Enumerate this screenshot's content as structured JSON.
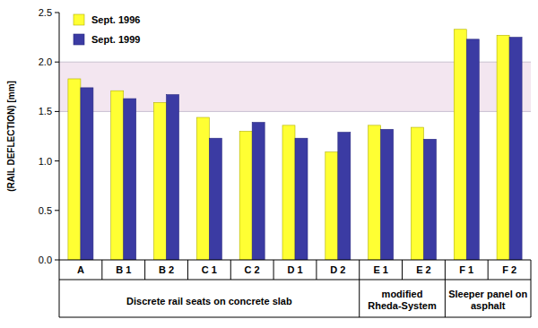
{
  "chart_data": {
    "type": "bar",
    "y_label": "(RAIL DEFLECTION) [mm]",
    "categories": [
      "A",
      "B 1",
      "B 2",
      "C 1",
      "C 2",
      "D 1",
      "D 2",
      "E 1",
      "E 2",
      "F 1",
      "F 2"
    ],
    "series": [
      {
        "name": "Sept. 1996",
        "color": "#ffff33",
        "values": [
          1.83,
          1.71,
          1.59,
          1.44,
          1.3,
          1.36,
          1.09,
          1.36,
          1.34,
          2.33,
          2.27
        ]
      },
      {
        "name": "Sept. 1999",
        "color": "#3b3ba3",
        "values": [
          1.74,
          1.63,
          1.67,
          1.23,
          1.39,
          1.23,
          1.29,
          1.32,
          1.22,
          2.23,
          2.25
        ]
      }
    ],
    "groups": [
      {
        "label_lines": [
          "Discrete rail seats on concrete slab"
        ],
        "categories": [
          "A",
          "B 1",
          "B 2",
          "C 1",
          "C 2",
          "D 1",
          "D 2"
        ]
      },
      {
        "label_lines": [
          "modified",
          "Rheda-System"
        ],
        "categories": [
          "E 1",
          "E 2"
        ]
      },
      {
        "label_lines": [
          "Sleeper panel on",
          "asphalt"
        ],
        "categories": [
          "F 1",
          "F 2"
        ]
      }
    ],
    "highlight_range": [
      1.5,
      2.0
    ],
    "ylim": [
      0,
      2.5
    ],
    "yticks": [
      {
        "value": 0,
        "label": "0.0"
      },
      0.5,
      {
        "value": 1,
        "label": "1.0"
      },
      1.5,
      {
        "value": 2,
        "label": "2.0"
      },
      2.5
    ],
    "grid": false,
    "legend": "upper-left"
  }
}
